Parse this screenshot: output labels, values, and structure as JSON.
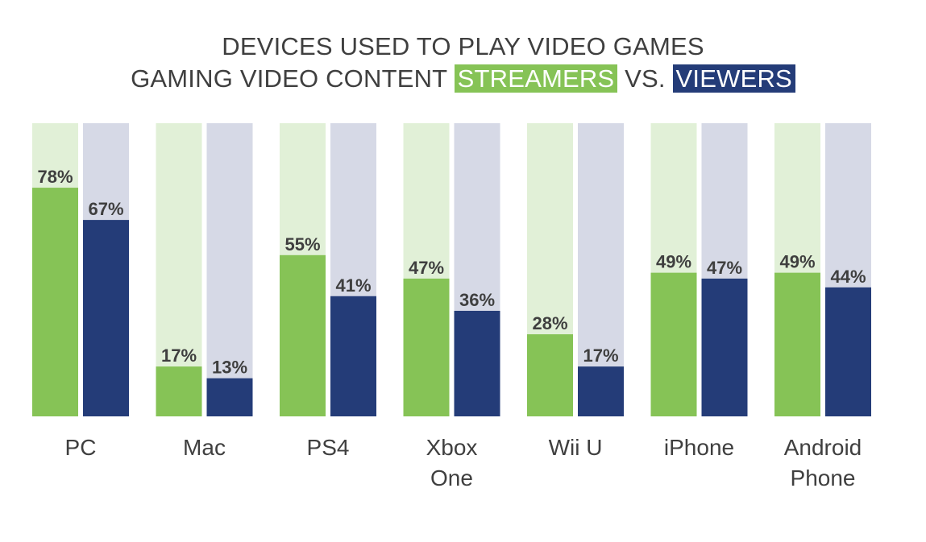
{
  "colors": {
    "streamers": "#86c356",
    "streamers_bg": "#e1f0d7",
    "viewers": "#243c78",
    "viewers_bg": "#d6d9e6",
    "text": "#3f3f3f"
  },
  "title": {
    "line1": "DEVICES USED TO PLAY VIDEO GAMES",
    "line2_prefix": "GAMING VIDEO CONTENT",
    "streamers_label": "STREAMERS",
    "vs": "VS.",
    "viewers_label": "VIEWERS"
  },
  "chart_data": {
    "type": "bar",
    "title": "DEVICES USED TO PLAY VIDEO GAMES GAMING VIDEO CONTENT STREAMERS VS. VIEWERS",
    "categories": [
      "PC",
      "Mac",
      "PS4",
      "Xbox One",
      "Wii U",
      "iPhone",
      "Android Phone"
    ],
    "category_lines": [
      [
        "PC"
      ],
      [
        "Mac"
      ],
      [
        "PS4"
      ],
      [
        "Xbox",
        "One"
      ],
      [
        "Wii U"
      ],
      [
        "iPhone"
      ],
      [
        "Android",
        "Phone"
      ]
    ],
    "series": [
      {
        "name": "STREAMERS",
        "values": [
          78,
          17,
          55,
          47,
          28,
          49,
          49
        ],
        "labels": [
          "78%",
          "17%",
          "55%",
          "47%",
          "28%",
          "49%",
          "49%"
        ]
      },
      {
        "name": "VIEWERS",
        "values": [
          67,
          13,
          41,
          36,
          17,
          47,
          44
        ],
        "labels": [
          "67%",
          "13%",
          "41%",
          "36%",
          "17%",
          "47%",
          "44%"
        ]
      }
    ],
    "ylim": [
      0,
      100
    ],
    "grid": false,
    "legend": "title"
  }
}
